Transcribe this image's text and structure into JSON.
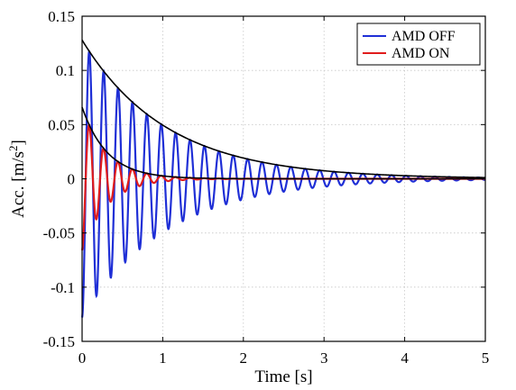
{
  "chart_data": {
    "type": "line",
    "title": "",
    "xlabel": "Time [s]",
    "ylabel": "Acc. [m/s",
    "ylabel_superscript": "2",
    "ylabel_close": "]",
    "xlim": [
      0,
      5
    ],
    "ylim": [
      -0.15,
      0.15
    ],
    "x_ticks": [
      0,
      1,
      2,
      3,
      4,
      5
    ],
    "y_ticks": [
      -0.15,
      -0.1,
      -0.05,
      0,
      0.05,
      0.1,
      0.15
    ],
    "x_tick_labels": [
      "0",
      "1",
      "2",
      "3",
      "4",
      "5"
    ],
    "y_tick_labels": [
      "-0.15",
      "-0.1",
      "-0.05",
      "0",
      "0.05",
      "0.1",
      "0.15"
    ],
    "grid": true,
    "legend_position": "top-right",
    "series": [
      {
        "name": "AMD OFF",
        "color": "#1f2fd6",
        "model": "damped_cosine",
        "amplitude": 0.128,
        "frequency_hz": 5.6,
        "decay_per_s": 0.95,
        "phase": 3.1416,
        "duration_s": 5
      },
      {
        "name": "AMD ON",
        "color": "#e01c1c",
        "model": "damped_cosine",
        "amplitude": 0.066,
        "frequency_hz": 5.6,
        "decay_per_s": 3.2,
        "phase": 3.1416,
        "duration_s": 5
      }
    ],
    "envelopes": [
      {
        "color": "#000000",
        "initial_value": 0.128,
        "decay_per_s": 0.95
      },
      {
        "color": "#000000",
        "initial_value": 0.066,
        "decay_per_s": 3.2
      }
    ]
  }
}
